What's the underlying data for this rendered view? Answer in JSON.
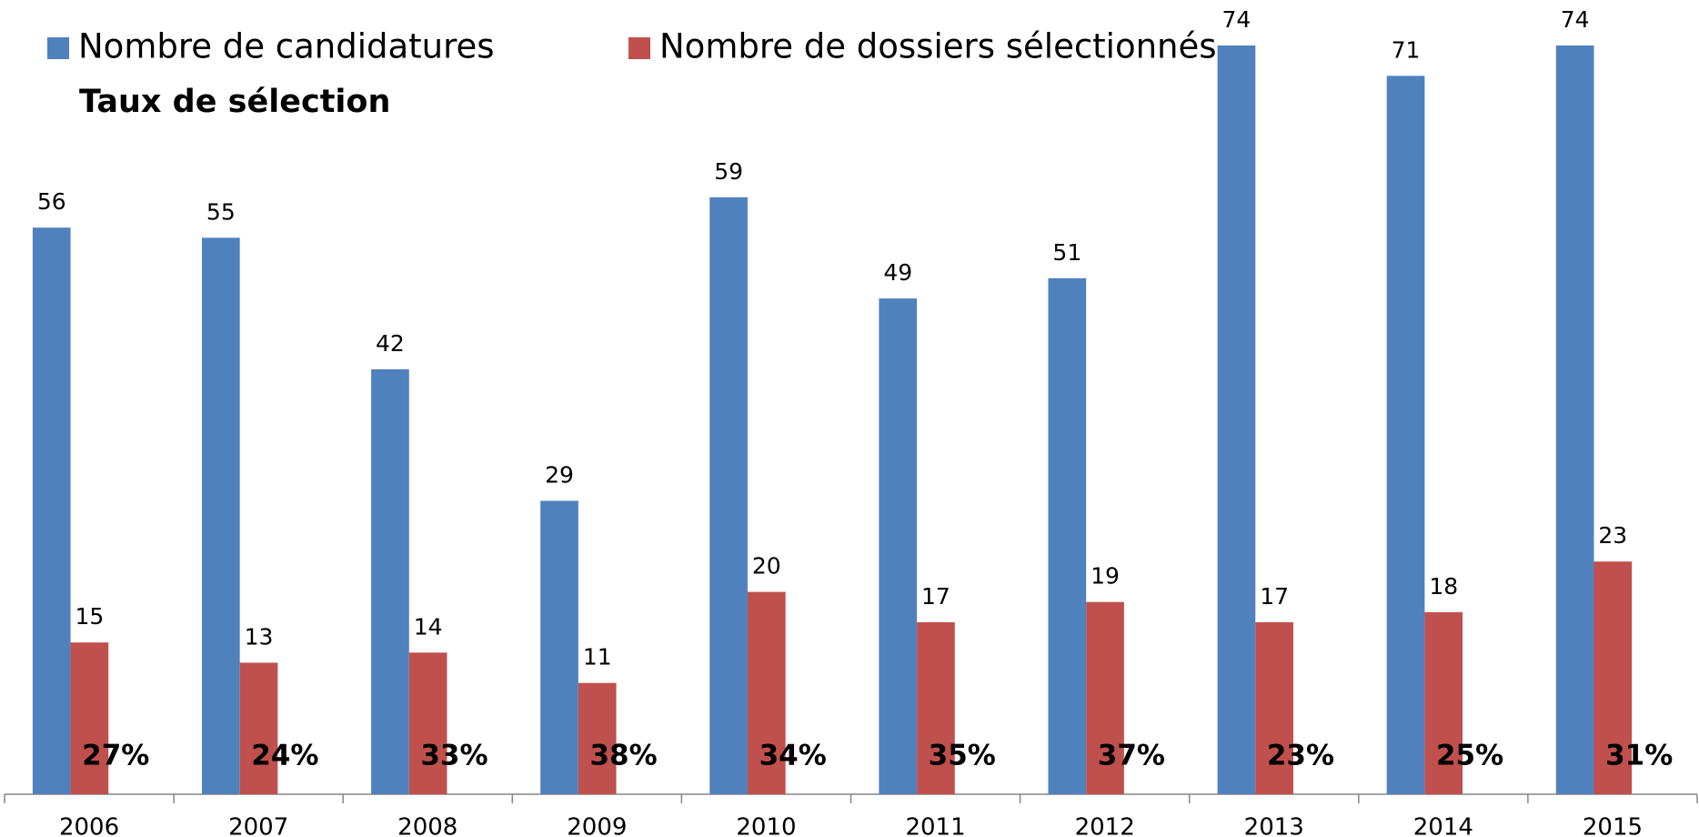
{
  "chart_data": {
    "type": "bar",
    "categories": [
      "2006",
      "2007",
      "2008",
      "2009",
      "2010",
      "2011",
      "2012",
      "2013",
      "2014",
      "2015"
    ],
    "series": [
      {
        "name": "Nombre de candidatures",
        "color": "#4f81bd",
        "values": [
          56,
          55,
          42,
          29,
          59,
          49,
          51,
          74,
          71,
          74
        ]
      },
      {
        "name": "Nombre de dossiers sélectionnés",
        "color": "#c0504d",
        "values": [
          15,
          13,
          14,
          11,
          20,
          17,
          19,
          17,
          18,
          23
        ]
      },
      {
        "name": "Taux de sélection",
        "values": [
          27,
          24,
          33,
          38,
          34,
          35,
          37,
          23,
          25,
          31
        ],
        "value_labels": [
          "27%",
          "24%",
          "33%",
          "38%",
          "34%",
          "35%",
          "37%",
          "23%",
          "25%",
          "31%"
        ]
      }
    ],
    "legend": "top-left"
  }
}
